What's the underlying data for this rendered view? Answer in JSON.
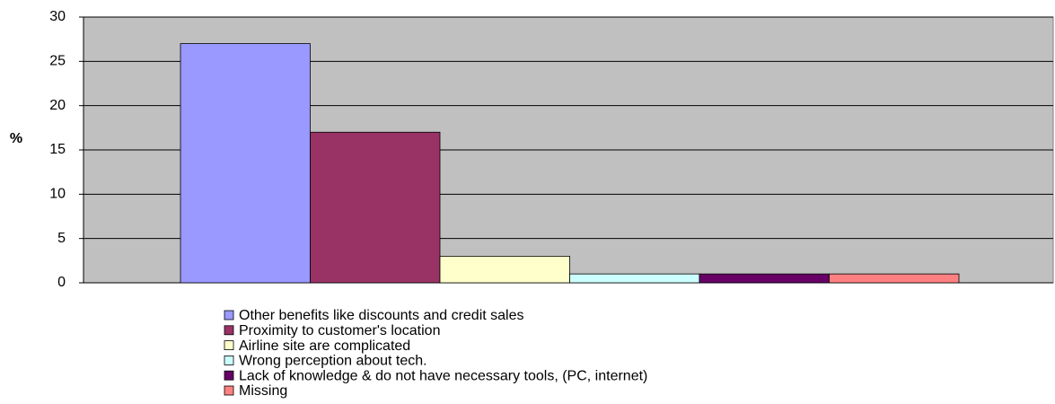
{
  "chart_data": {
    "type": "bar",
    "ylabel": "%",
    "series": [
      {
        "name": "Other benefits like discounts and credit sales",
        "color": "#9999ff",
        "values": [
          27
        ]
      },
      {
        "name": "Proximity to customer's location",
        "color": "#993366",
        "values": [
          17
        ]
      },
      {
        "name": "Airline site are complicated",
        "color": "#ffffcc",
        "values": [
          3
        ]
      },
      {
        "name": "Wrong perception about tech.",
        "color": "#ccffff",
        "values": [
          1
        ]
      },
      {
        "name": "Lack of knowledge & do not have necessary tools, (PC, internet)",
        "color": "#660066",
        "values": [
          1
        ]
      },
      {
        "name": "Missing",
        "color": "#ff8080",
        "values": [
          1
        ]
      }
    ],
    "ylim": [
      0,
      30
    ],
    "yticks": [
      0,
      5,
      10,
      15,
      20,
      25,
      30
    ],
    "grid": true,
    "legend": "bottom"
  }
}
